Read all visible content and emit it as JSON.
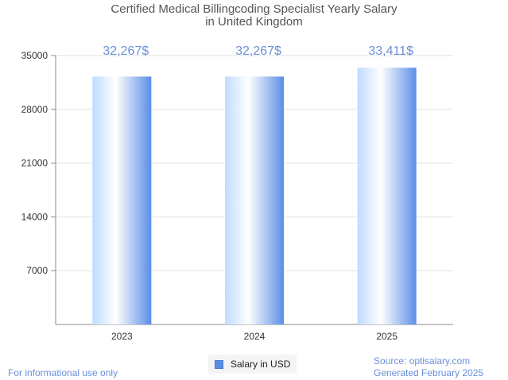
{
  "chart_data": {
    "type": "bar",
    "title": [
      "Certified Medical Billingcoding Specialist Yearly Salary",
      "in United Kingdom"
    ],
    "categories": [
      "2023",
      "2024",
      "2025"
    ],
    "series": [
      {
        "name": "Salary in USD",
        "values": [
          32267,
          32267,
          33411
        ]
      }
    ],
    "data_labels": [
      "32,267$",
      "32,267$",
      "33,411$"
    ],
    "yticks": [
      7000,
      14000,
      21000,
      28000,
      35000
    ],
    "ylim": [
      0,
      35000
    ],
    "xlabel": "",
    "ylabel": "",
    "grid": true,
    "legend_position": "bottom-center"
  },
  "footer": {
    "disclaimer": "For informational use only",
    "source": "Source: optisalary.com",
    "generated": "Generated February 2025"
  },
  "colors": {
    "bar_light": "#ffffff",
    "bar_mid": "#bfdcff",
    "bar_dark": "#5a8ee6",
    "label": "#6b8fd8",
    "grid": "#e2e2e2",
    "axis": "#888888"
  }
}
